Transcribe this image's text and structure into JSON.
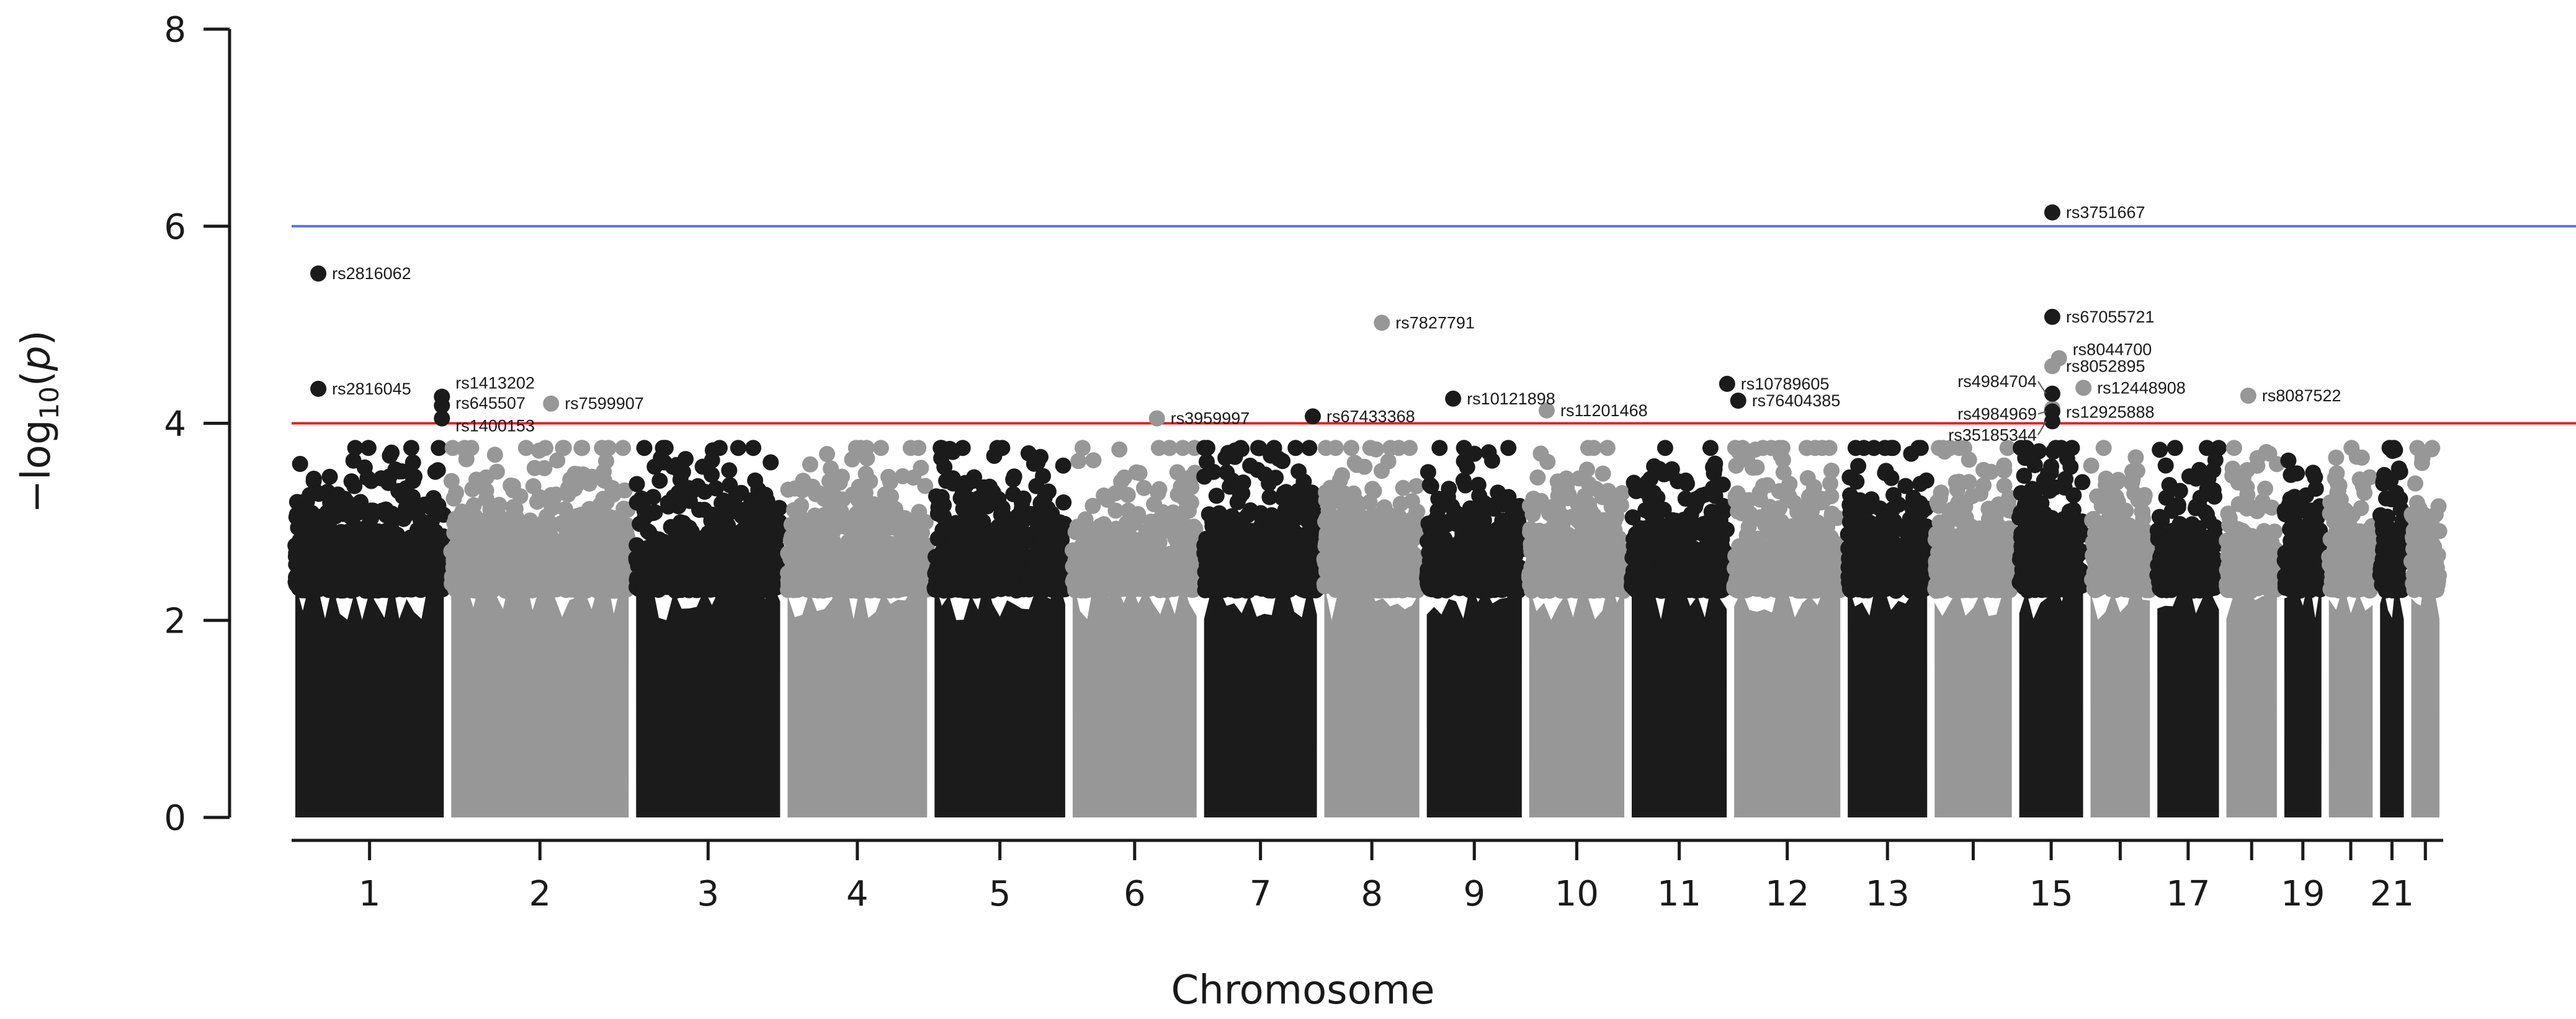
{
  "chart_data": {
    "type": "scatter",
    "xlabel": "Chromosome",
    "ylabel_parts": {
      "minus": "−",
      "log": "log",
      "base": "10",
      "open": "(",
      "var": "p",
      "close": ")"
    },
    "ylim": [
      0,
      8
    ],
    "yticks": [
      0,
      2,
      4,
      6,
      8
    ],
    "grid": false,
    "legend": "none",
    "colors": {
      "odd": "#1b1b1b",
      "even": "#979797"
    },
    "thresholds": [
      {
        "value": 6,
        "color": "#5a74d4"
      },
      {
        "value": 4,
        "color": "#e0221f"
      }
    ],
    "chromosomes": [
      {
        "chr": 1,
        "start": 0.0,
        "end": 0.07,
        "label": "1"
      },
      {
        "chr": 2,
        "start": 0.07,
        "end": 0.153,
        "label": "2"
      },
      {
        "chr": 3,
        "start": 0.153,
        "end": 0.221,
        "label": "3"
      },
      {
        "chr": 4,
        "start": 0.221,
        "end": 0.287,
        "label": "4"
      },
      {
        "chr": 5,
        "start": 0.287,
        "end": 0.349,
        "label": "5"
      },
      {
        "chr": 6,
        "start": 0.349,
        "end": 0.408,
        "label": "6"
      },
      {
        "chr": 7,
        "start": 0.408,
        "end": 0.462,
        "label": "7"
      },
      {
        "chr": 8,
        "start": 0.462,
        "end": 0.508,
        "label": "8"
      },
      {
        "chr": 9,
        "start": 0.508,
        "end": 0.554,
        "label": "9"
      },
      {
        "chr": 10,
        "start": 0.554,
        "end": 0.6,
        "label": "10"
      },
      {
        "chr": 11,
        "start": 0.6,
        "end": 0.646,
        "label": "11"
      },
      {
        "chr": 12,
        "start": 0.646,
        "end": 0.697,
        "label": "12"
      },
      {
        "chr": 13,
        "start": 0.697,
        "end": 0.736,
        "label": "13"
      },
      {
        "chr": 14,
        "start": 0.736,
        "end": 0.774,
        "label": ""
      },
      {
        "chr": 15,
        "start": 0.774,
        "end": 0.806,
        "label": "15"
      },
      {
        "chr": 16,
        "start": 0.806,
        "end": 0.836,
        "label": ""
      },
      {
        "chr": 17,
        "start": 0.836,
        "end": 0.867,
        "label": "17"
      },
      {
        "chr": 18,
        "start": 0.867,
        "end": 0.893,
        "label": ""
      },
      {
        "chr": 19,
        "start": 0.893,
        "end": 0.913,
        "label": "19"
      },
      {
        "chr": 20,
        "start": 0.913,
        "end": 0.936,
        "label": ""
      },
      {
        "chr": 21,
        "start": 0.936,
        "end": 0.95,
        "label": "21"
      },
      {
        "chr": 22,
        "start": 0.95,
        "end": 0.966,
        "label": ""
      }
    ],
    "top_snps": [
      {
        "snp": "rs2816062",
        "chr": 1,
        "pos": 0.012,
        "y": 5.52
      },
      {
        "snp": "rs2816045",
        "chr": 1,
        "pos": 0.012,
        "y": 4.35
      },
      {
        "snp": "rs1413202",
        "chr": 1,
        "pos": 0.0675,
        "y": 4.27
      },
      {
        "snp": "rs645507",
        "chr": 1,
        "pos": 0.0675,
        "y": 4.18
      },
      {
        "snp": "rs1400153",
        "chr": 1,
        "pos": 0.0675,
        "y": 4.05
      },
      {
        "snp": "rs7599907",
        "chr": 2,
        "pos": 0.1165,
        "y": 4.2
      },
      {
        "snp": "rs3959997",
        "chr": 6,
        "pos": 0.3885,
        "y": 4.05
      },
      {
        "snp": "rs67433368",
        "chr": 7,
        "pos": 0.4585,
        "y": 4.07
      },
      {
        "snp": "rs7827791",
        "chr": 8,
        "pos": 0.4895,
        "y": 5.02
      },
      {
        "snp": "rs10121898",
        "chr": 9,
        "pos": 0.5215,
        "y": 4.25
      },
      {
        "snp": "rs11201468",
        "chr": 10,
        "pos": 0.5635,
        "y": 4.13
      },
      {
        "snp": "rs10789605",
        "chr": 11,
        "pos": 0.6445,
        "y": 4.4
      },
      {
        "snp": "rs76404385",
        "chr": 11,
        "pos": 0.6495,
        "y": 4.23
      },
      {
        "snp": "rs3751667",
        "chr": 15,
        "pos": 0.7905,
        "y": 6.14
      },
      {
        "snp": "rs67055721",
        "chr": 15,
        "pos": 0.7905,
        "y": 5.08
      },
      {
        "snp": "rs8044700",
        "chr": 16,
        "pos": 0.7935,
        "y": 4.66
      },
      {
        "snp": "rs8052895",
        "chr": 16,
        "pos": 0.7905,
        "y": 4.58
      },
      {
        "snp": "rs12448908",
        "chr": 16,
        "pos": 0.8045,
        "y": 4.36
      },
      {
        "snp": "rs12925888",
        "chr": 16,
        "pos": 0.7905,
        "y": 4.15
      },
      {
        "snp": "rs4984704",
        "chr": 15,
        "pos": 0.7905,
        "y": 4.3
      },
      {
        "snp": "rs4984969",
        "chr": 15,
        "pos": 0.7905,
        "y": 4.12
      },
      {
        "snp": "rs35185344",
        "chr": 15,
        "pos": 0.7905,
        "y": 4.02
      },
      {
        "snp": "rs8087522",
        "chr": 18,
        "pos": 0.8785,
        "y": 4.28
      }
    ]
  }
}
